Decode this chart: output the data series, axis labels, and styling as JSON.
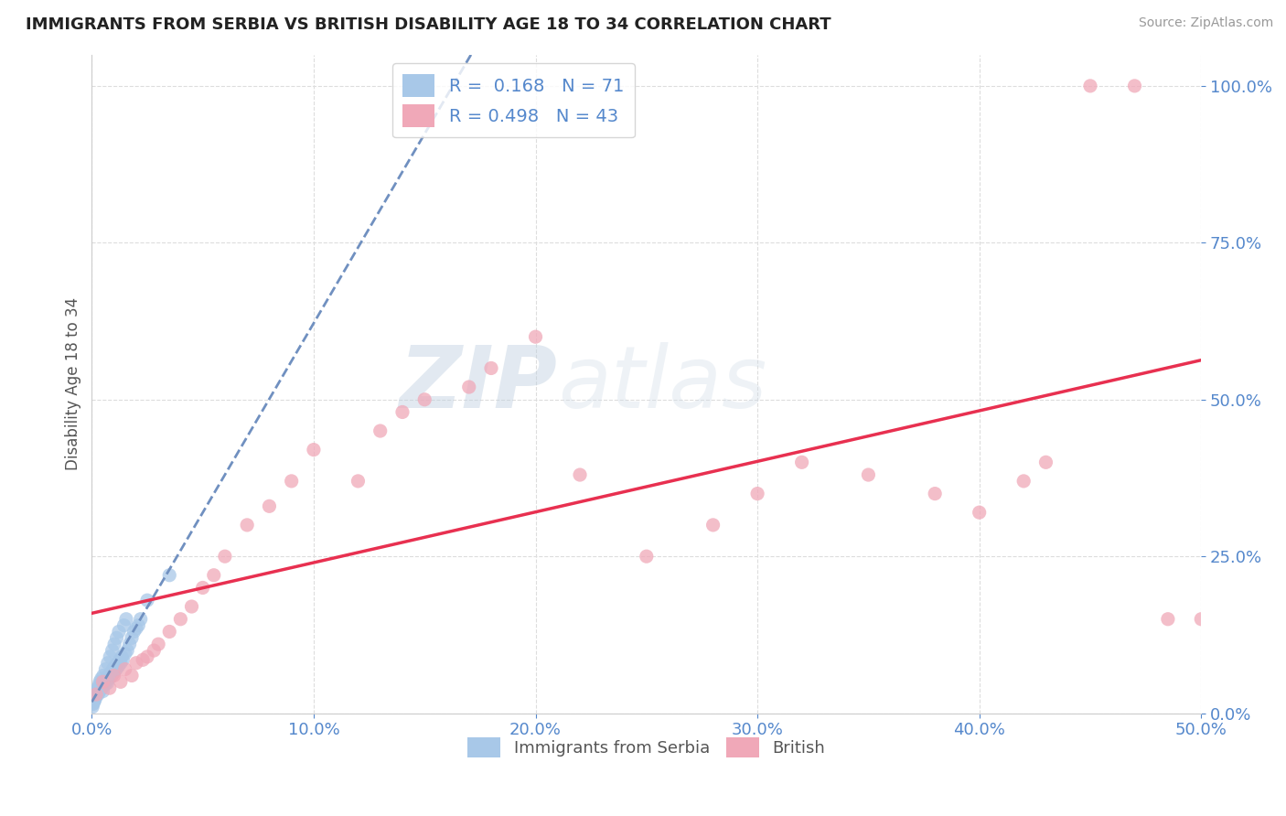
{
  "title": "IMMIGRANTS FROM SERBIA VS BRITISH DISABILITY AGE 18 TO 34 CORRELATION CHART",
  "source": "Source: ZipAtlas.com",
  "ylabel": "Disability Age 18 to 34",
  "watermark_zip": "ZIP",
  "watermark_atlas": "atlas",
  "xlim": [
    0.0,
    50.0
  ],
  "ylim": [
    0.0,
    105.0
  ],
  "serbia_R": 0.168,
  "serbia_N": 71,
  "british_R": 0.498,
  "british_N": 43,
  "serbia_color": "#a8c8e8",
  "british_color": "#f0a8b8",
  "serbia_line_color": "#7090c0",
  "british_line_color": "#e83050",
  "title_color": "#222222",
  "axis_label_color": "#555555",
  "tick_label_color": "#5588cc",
  "r_label_color": "#5588cc",
  "n_label_color": "#5588cc",
  "background_color": "#ffffff",
  "grid_color": "#dddddd",
  "serbia_x": [
    0.05,
    0.08,
    0.1,
    0.12,
    0.15,
    0.18,
    0.2,
    0.22,
    0.25,
    0.28,
    0.3,
    0.32,
    0.35,
    0.38,
    0.4,
    0.42,
    0.45,
    0.48,
    0.5,
    0.55,
    0.58,
    0.6,
    0.65,
    0.68,
    0.7,
    0.75,
    0.78,
    0.8,
    0.85,
    0.88,
    0.9,
    0.95,
    1.0,
    1.05,
    1.1,
    1.15,
    1.2,
    1.25,
    1.3,
    1.35,
    1.4,
    1.5,
    1.6,
    1.7,
    1.8,
    1.9,
    2.0,
    2.1,
    2.2,
    2.5,
    0.03,
    0.06,
    0.09,
    0.14,
    0.17,
    0.23,
    0.27,
    0.33,
    0.36,
    0.43,
    0.52,
    0.62,
    0.72,
    0.82,
    0.92,
    1.02,
    1.12,
    1.22,
    1.45,
    1.55,
    3.5
  ],
  "serbia_y": [
    1.5,
    2.0,
    1.8,
    2.5,
    2.2,
    3.0,
    2.8,
    3.2,
    3.5,
    3.0,
    3.8,
    4.0,
    3.5,
    4.2,
    3.8,
    4.5,
    4.0,
    4.8,
    3.5,
    5.0,
    4.5,
    5.2,
    5.0,
    5.5,
    4.8,
    6.0,
    5.5,
    6.2,
    5.8,
    6.5,
    6.0,
    7.0,
    6.5,
    7.5,
    7.0,
    8.0,
    7.5,
    8.5,
    8.0,
    9.0,
    8.5,
    9.5,
    10.0,
    11.0,
    12.0,
    13.0,
    13.5,
    14.0,
    15.0,
    18.0,
    1.0,
    1.5,
    2.0,
    2.5,
    3.0,
    3.5,
    4.0,
    4.5,
    5.0,
    5.5,
    6.0,
    7.0,
    8.0,
    9.0,
    10.0,
    11.0,
    12.0,
    13.0,
    14.0,
    15.0,
    22.0
  ],
  "british_x": [
    0.2,
    0.5,
    0.8,
    1.0,
    1.3,
    1.5,
    1.8,
    2.0,
    2.3,
    2.5,
    2.8,
    3.0,
    3.5,
    4.0,
    4.5,
    5.0,
    5.5,
    6.0,
    7.0,
    8.0,
    9.0,
    10.0,
    12.0,
    13.0,
    14.0,
    15.0,
    17.0,
    18.0,
    20.0,
    22.0,
    25.0,
    28.0,
    30.0,
    32.0,
    35.0,
    38.0,
    40.0,
    42.0,
    43.0,
    45.0,
    47.0,
    48.5,
    50.0
  ],
  "british_y": [
    3.0,
    5.0,
    4.0,
    6.0,
    5.0,
    7.0,
    6.0,
    8.0,
    8.5,
    9.0,
    10.0,
    11.0,
    13.0,
    15.0,
    17.0,
    20.0,
    22.0,
    25.0,
    30.0,
    33.0,
    37.0,
    42.0,
    37.0,
    45.0,
    48.0,
    50.0,
    52.0,
    55.0,
    60.0,
    38.0,
    25.0,
    30.0,
    35.0,
    40.0,
    38.0,
    35.0,
    32.0,
    37.0,
    40.0,
    100.0,
    100.0,
    15.0,
    15.0
  ]
}
